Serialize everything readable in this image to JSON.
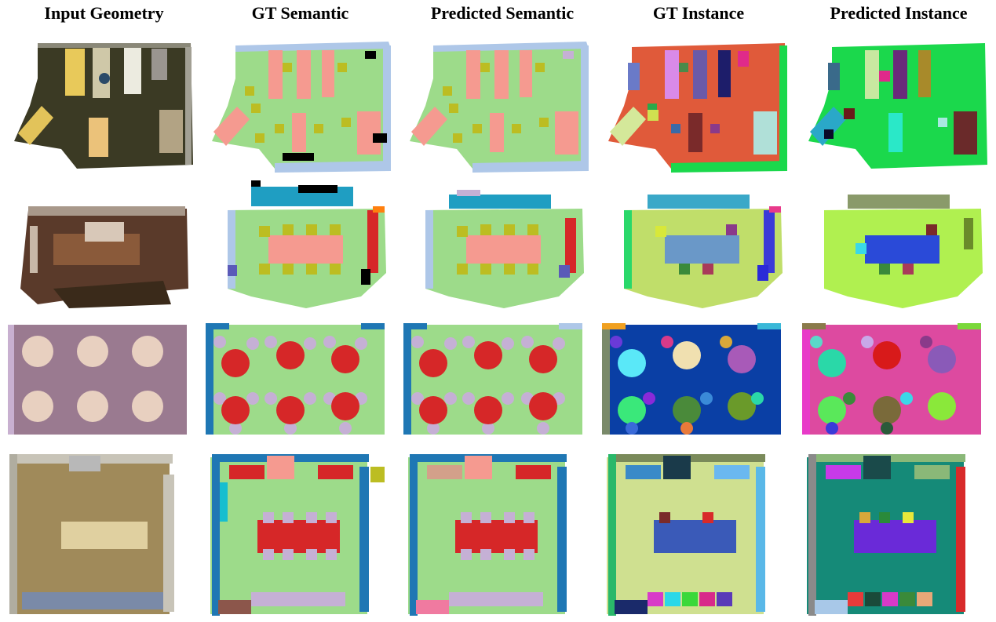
{
  "figure": {
    "columns": [
      {
        "label": "Input Geometry"
      },
      {
        "label": "GT Semantic"
      },
      {
        "label": "Predicted Semantic"
      },
      {
        "label": "GT Instance"
      },
      {
        "label": "Predicted Instance"
      }
    ],
    "rows": 4,
    "palette": {
      "semantic_floor": "#9ddb8a",
      "semantic_wall": "#aec7e8",
      "semantic_table": "#f59a90",
      "semantic_chair": "#bcbd22",
      "semantic_round_table": "#d62728",
      "semantic_chair_light": "#c5b0d5",
      "semantic_border_blue": "#1f77b4",
      "instance_floor_row1": "#e05a3a",
      "instance_floor_row1_pred": "#1bd84c",
      "instance_floor_row2": "#c0de6a",
      "instance_floor_row2_pred": "#b0f050",
      "instance_floor_row3": "#0a3fa5",
      "instance_floor_row3_pred": "#dd4aa0",
      "instance_floor_row4": "#cfe090",
      "instance_floor_row4_pred": "#158a78"
    }
  }
}
